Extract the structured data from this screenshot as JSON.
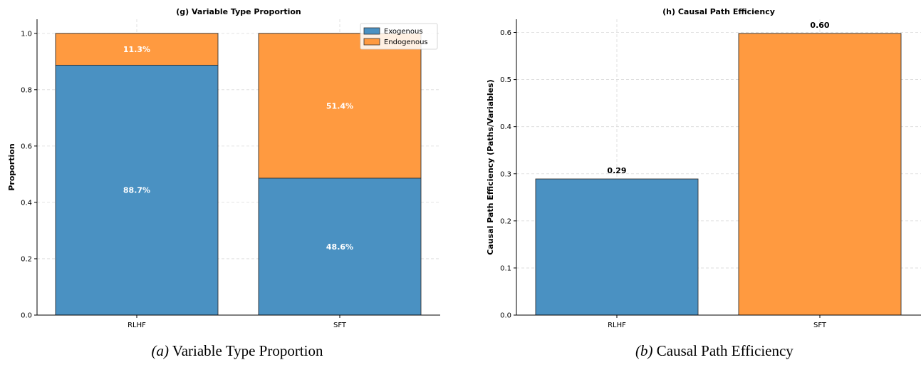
{
  "colors": {
    "exogenous": "#4a91c2",
    "endogenous": "#ff9a40",
    "edge": "#333333"
  },
  "chart_data": [
    {
      "type": "bar",
      "stacked": true,
      "title": "(g) Variable Type Proportion",
      "xlabel": "",
      "ylabel": "Proportion",
      "categories": [
        "RLHF",
        "SFT"
      ],
      "series": [
        {
          "name": "Exogenous",
          "values": [
            0.887,
            0.486
          ],
          "labels": [
            "88.7%",
            "48.6%"
          ]
        },
        {
          "name": "Endogenous",
          "values": [
            0.113,
            0.514
          ],
          "labels": [
            "11.3%",
            "51.4%"
          ]
        }
      ],
      "ylim": [
        0,
        1.05
      ],
      "yticks": [
        "0.0",
        "0.2",
        "0.4",
        "0.6",
        "0.8",
        "1.0"
      ],
      "ytick_values": [
        0,
        0.2,
        0.4,
        0.6,
        0.8,
        1.0
      ],
      "grid": true,
      "legend": "top-right",
      "caption_prefix": "(a)",
      "caption_text": "Variable Type Proportion"
    },
    {
      "type": "bar",
      "title": "(h) Causal Path Efficiency",
      "xlabel": "",
      "ylabel": "Causal Path Efficiency (Paths/Variables)",
      "categories": [
        "RLHF",
        "SFT"
      ],
      "values": [
        0.289,
        0.598
      ],
      "labels": [
        "0.29",
        "0.60"
      ],
      "ylim": [
        0,
        0.628
      ],
      "yticks": [
        "0.0",
        "0.1",
        "0.2",
        "0.3",
        "0.4",
        "0.5",
        "0.6"
      ],
      "ytick_values": [
        0,
        0.1,
        0.2,
        0.3,
        0.4,
        0.5,
        0.6
      ],
      "grid": true,
      "caption_prefix": "(b)",
      "caption_text": "Causal Path Efficiency"
    }
  ]
}
